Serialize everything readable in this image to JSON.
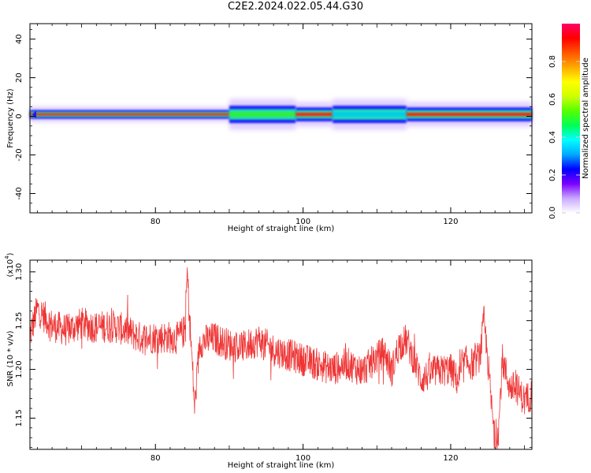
{
  "chart_data": [
    {
      "type": "heatmap",
      "title": "C2E2.2024.022.05.44.G30",
      "xlabel": "Height of straight line (km)",
      "ylabel": "Frequency (Hz)",
      "xlim": [
        63,
        131
      ],
      "ylim": [
        -50,
        48
      ],
      "x_ticks": [
        "80",
        "100",
        "120"
      ],
      "y_ticks": [
        "40",
        "20",
        "0",
        "-20",
        "-40"
      ],
      "colorbar": {
        "label": "Normalized spectral amplitude",
        "range": [
          0,
          1
        ],
        "ticks": [
          "0.0",
          "0.2",
          "0.4",
          "0.6",
          "0.8"
        ],
        "colors": [
          "#ffffff",
          "#c8a8ff",
          "#7b00ff",
          "#0000ff",
          "#00aaff",
          "#00ffff",
          "#00ff55",
          "#55ff00",
          "#ccff00",
          "#ffff00",
          "#ffaa00",
          "#ff5500",
          "#ff0000",
          "#ff0066"
        ]
      },
      "ridge": {
        "center_frequency_hz": 1,
        "segments": [
          {
            "x": [
              63,
              90
            ],
            "width_hz": 2.5,
            "core": "red"
          },
          {
            "x": [
              90,
              99
            ],
            "width_hz": 5,
            "core": "green"
          },
          {
            "x": [
              99,
              104
            ],
            "width_hz": 4,
            "core": "red"
          },
          {
            "x": [
              104,
              114
            ],
            "width_hz": 5,
            "core": "cyan"
          },
          {
            "x": [
              114,
              131
            ],
            "width_hz": 4,
            "core": "red"
          }
        ]
      }
    },
    {
      "type": "line",
      "xlabel": "Height of straight line (km)",
      "ylabel": "SNR (10 * v/v)",
      "y_multiplier": "(x10^4)",
      "y_multiplier_base": "(x10",
      "y_multiplier_exp": "4",
      "y_multiplier_close": ")",
      "xlim": [
        63,
        131
      ],
      "ylim": [
        1.118,
        1.312
      ],
      "x_ticks": [
        "80",
        "100",
        "120"
      ],
      "y_ticks": [
        "1.30",
        "1.25",
        "1.20",
        "1.15"
      ],
      "series": [
        {
          "color": "#ef3535",
          "trend_x": [
            63,
            64,
            66,
            68,
            70,
            72,
            74,
            76,
            78,
            80,
            82,
            83,
            84,
            84.3,
            84.6,
            85,
            85.3,
            86,
            88,
            90,
            92,
            94,
            96,
            98,
            100,
            102,
            104,
            106,
            108,
            110,
            111,
            112,
            113,
            114,
            115,
            116,
            118,
            120,
            121,
            122,
            123,
            124,
            124.5,
            125,
            125.5,
            126,
            126.5,
            127,
            128,
            129,
            130,
            131
          ],
          "trend_y": [
            1.235,
            1.262,
            1.245,
            1.24,
            1.247,
            1.243,
            1.245,
            1.24,
            1.232,
            1.233,
            1.233,
            1.232,
            1.24,
            1.3,
            1.255,
            1.205,
            1.16,
            1.228,
            1.232,
            1.225,
            1.223,
            1.23,
            1.22,
            1.215,
            1.21,
            1.205,
            1.2,
            1.206,
            1.198,
            1.212,
            1.218,
            1.198,
            1.225,
            1.23,
            1.21,
            1.19,
            1.198,
            1.2,
            1.188,
            1.208,
            1.205,
            1.215,
            1.25,
            1.212,
            1.165,
            1.125,
            1.14,
            1.21,
            1.182,
            1.18,
            1.168,
            1.175
          ],
          "noise_amplitude": 0.017
        }
      ]
    }
  ]
}
